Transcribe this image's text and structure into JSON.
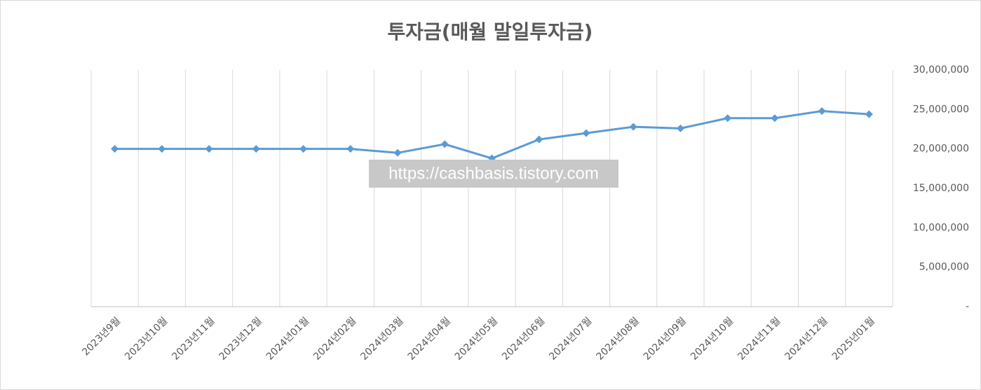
{
  "chart_data": {
    "type": "line",
    "title": "투자금(매월 말일투자금)",
    "watermark": "https://cashbasis.tistory.com",
    "categories": [
      "2023년9월",
      "2023년10월",
      "2023년11월",
      "2023년12월",
      "2024년01월",
      "2024년02월",
      "2024년03월",
      "2024년04월",
      "2024년05월",
      "2024년06월",
      "2024년07월",
      "2024년08월",
      "2024년09월",
      "2024년10월",
      "2024년11월",
      "2024년12월",
      "2025년01월"
    ],
    "series": [
      {
        "color": "#5b9bd5",
        "values": [
          20000000,
          20000000,
          20000000,
          20000000,
          20000000,
          20000000,
          19500000,
          20600000,
          18800000,
          21200000,
          22000000,
          22800000,
          22600000,
          23900000,
          23900000,
          24800000,
          24400000
        ]
      }
    ],
    "ylim": [
      0,
      30000000
    ],
    "yticks": [
      {
        "value": 0,
        "label": "-"
      },
      {
        "value": 5000000,
        "label": "5,000,000"
      },
      {
        "value": 10000000,
        "label": "10,000,000"
      },
      {
        "value": 15000000,
        "label": "15,000,000"
      },
      {
        "value": 20000000,
        "label": "20,000,000"
      },
      {
        "value": 25000000,
        "label": "25,000,000"
      },
      {
        "value": 30000000,
        "label": "30,000,000"
      }
    ],
    "y_axis_side": "right",
    "grid": "x"
  }
}
